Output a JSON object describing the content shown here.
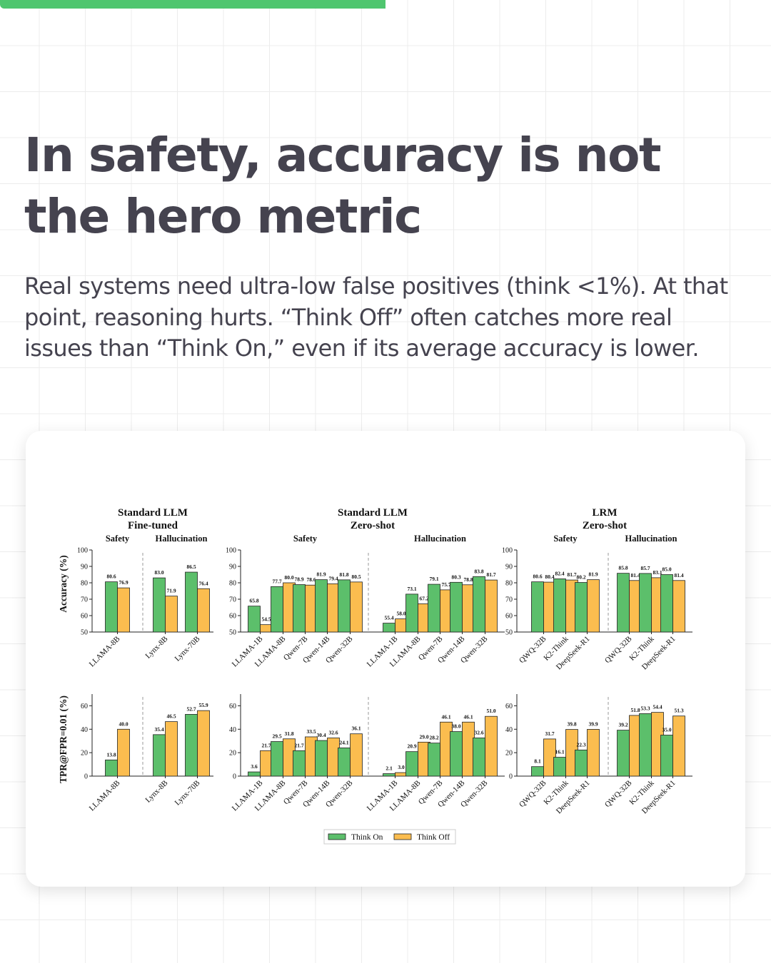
{
  "progress": 0.5,
  "title": "In safety, accuracy is not the hero metric",
  "subtitle": "Real systems need ultra-low false positives (think <1%). At that point, reasoning hurts. “Think Off” often catches more real issues than “Think On,” even if its average accuracy is lower.",
  "colors": {
    "think_on": "#5cbf6b",
    "think_off": "#fbbd4f",
    "accent": "#4fc66f",
    "text": "#45434f"
  },
  "chart_data": {
    "type": "bar",
    "legend": {
      "position": "bottom-center",
      "items": [
        "Think On",
        "Think Off"
      ]
    },
    "row_ylabels": [
      "Accuracy (%)",
      "TPR@FPR=0.01 (%)"
    ],
    "columns": [
      {
        "title": [
          "Standard LLM",
          "Fine-tuned"
        ],
        "groups": [
          {
            "label": "Safety",
            "categories": [
              "LLAMA-8B"
            ]
          },
          {
            "label": "Hallucination",
            "categories": [
              "Lynx-8B",
              "Lynx-70B"
            ]
          }
        ]
      },
      {
        "title": [
          "Standard LLM",
          "Zero-shot"
        ],
        "groups": [
          {
            "label": "Safety",
            "categories": [
              "LLAMA-1B",
              "LLAMA-8B",
              "Qwen-7B",
              "Qwen-14B",
              "Qwen-32B"
            ]
          },
          {
            "label": "Hallucination",
            "categories": [
              "LLAMA-1B",
              "LLAMA-8B",
              "Qwen-7B",
              "Qwen-14B",
              "Qwen-32B"
            ]
          }
        ]
      },
      {
        "title": [
          "LRM",
          "Zero-shot"
        ],
        "groups": [
          {
            "label": "Safety",
            "categories": [
              "QWQ-32B",
              "K2-Think",
              "DeepSeek-R1"
            ]
          },
          {
            "label": "Hallucination",
            "categories": [
              "QWQ-32B",
              "K2-Think",
              "DeepSeek-R1"
            ]
          }
        ]
      }
    ],
    "rows": [
      {
        "metric": "Accuracy (%)",
        "ylim": [
          50,
          100
        ],
        "yticks": [
          50,
          60,
          70,
          80,
          90,
          100
        ],
        "series": [
          {
            "name": "Think On",
            "values": [
              [
                80.6,
                83.0,
                86.5
              ],
              [
                65.8,
                77.7,
                78.9,
                81.9,
                81.8,
                55.4,
                73.1,
                79.1,
                80.3,
                83.8
              ],
              [
                80.6,
                82.4,
                80.2,
                85.8,
                85.7,
                85.0
              ]
            ]
          },
          {
            "name": "Think Off",
            "values": [
              [
                76.9,
                71.9,
                76.4
              ],
              [
                54.5,
                80.0,
                78.6,
                79.4,
                80.5,
                58.0,
                67.2,
                75.7,
                78.8,
                81.7
              ],
              [
                80.4,
                81.7,
                81.9,
                81.4,
                83.1,
                81.4
              ]
            ]
          }
        ]
      },
      {
        "metric": "TPR@FPR=0.01 (%)",
        "ylim": [
          0,
          70
        ],
        "yticks": [
          0,
          20,
          40,
          60
        ],
        "series": [
          {
            "name": "Think On",
            "values": [
              [
                13.8,
                35.4,
                52.7
              ],
              [
                3.6,
                29.5,
                21.7,
                30.4,
                24.1,
                2.1,
                20.9,
                28.2,
                38.0,
                32.6
              ],
              [
                8.1,
                16.1,
                22.3,
                39.2,
                53.3,
                35.0
              ]
            ]
          },
          {
            "name": "Think Off",
            "values": [
              [
                40.0,
                46.5,
                55.9
              ],
              [
                21.7,
                31.8,
                33.5,
                32.6,
                36.1,
                3.0,
                29.0,
                46.1,
                46.1,
                51.0
              ],
              [
                31.7,
                39.8,
                39.9,
                51.8,
                54.4,
                51.3
              ]
            ]
          }
        ]
      }
    ]
  }
}
